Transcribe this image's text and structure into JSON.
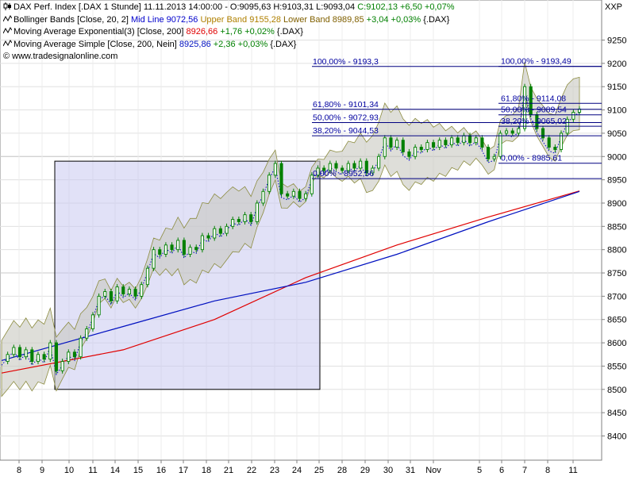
{
  "header": {
    "instrument": "DAX Perf. Index [.DAX  1 Stunde] 11.11.2013 14:00:00 - O:9095,63 H:9103,31 L:9093,04",
    "close_change": "C:9102,13 +6,50 +0,07%",
    "bollinger_prefix": "Bollinger Bands [Close, 20, 2]",
    "bollinger_mid": "Mid Line 9072,56",
    "bollinger_upper": "Upper Band 9155,28",
    "bollinger_lower": "Lower Band 8989,85",
    "bollinger_change": "+3,04 +0,03%",
    "bollinger_suffix": "{.DAX}",
    "ema_prefix": "Moving Average Exponential(3) [Close, 200]",
    "ema_value": "8926,66",
    "ema_change": "+1,76 +0,02%",
    "ema_suffix": "{.DAX}",
    "sma_prefix": "Moving Average Simple [Close, 200, Nein]",
    "sma_value": "8925,86",
    "sma_change": "+2,36 +0,03%",
    "sma_suffix": "{.DAX}",
    "source": "www.tradesignalonline.com",
    "exchange": "XXP"
  },
  "colors": {
    "candle": "#008000",
    "bollinger_fill": "#c8c8c0",
    "bollinger_mid": "#0000cc",
    "ema": "#e00000",
    "sma": "#0010c0",
    "fib": "#000080",
    "fib_text": "#0000a0",
    "box_fill": "#c8c8f0",
    "box_border": "#000000"
  },
  "chart_data": {
    "type": "line",
    "y_axis": {
      "ylim": [
        8350,
        9300
      ],
      "ticks": [
        8400,
        8450,
        8500,
        8550,
        8600,
        8650,
        8700,
        8750,
        8800,
        8850,
        8900,
        8950,
        9000,
        9050,
        9100,
        9150,
        9200,
        9250
      ]
    },
    "x_axis": {
      "ticks": [
        "8",
        "9",
        "10",
        "11",
        "14",
        "15",
        "16",
        "17",
        "18",
        "21",
        "22",
        "23",
        "24",
        "25",
        "28",
        "29",
        "30",
        "31",
        "Nov",
        "5",
        "6",
        "7",
        "8",
        "11"
      ]
    },
    "grid": true,
    "close_series": [
      [
        0,
        8560
      ],
      [
        2,
        8575
      ],
      [
        4,
        8590
      ],
      [
        6,
        8570
      ],
      [
        8,
        8585
      ],
      [
        10,
        8560
      ],
      [
        12,
        8575
      ],
      [
        14,
        8565
      ],
      [
        16,
        8600
      ],
      [
        18,
        8540
      ],
      [
        20,
        8560
      ],
      [
        22,
        8580
      ],
      [
        24,
        8570
      ],
      [
        26,
        8610
      ],
      [
        28,
        8630
      ],
      [
        30,
        8660
      ],
      [
        32,
        8700
      ],
      [
        34,
        8710
      ],
      [
        36,
        8690
      ],
      [
        38,
        8720
      ],
      [
        40,
        8705
      ],
      [
        42,
        8715
      ],
      [
        44,
        8700
      ],
      [
        46,
        8725
      ],
      [
        48,
        8760
      ],
      [
        50,
        8800
      ],
      [
        52,
        8790
      ],
      [
        54,
        8810
      ],
      [
        56,
        8800
      ],
      [
        58,
        8820
      ],
      [
        60,
        8790
      ],
      [
        62,
        8805
      ],
      [
        64,
        8800
      ],
      [
        66,
        8830
      ],
      [
        68,
        8825
      ],
      [
        70,
        8845
      ],
      [
        72,
        8835
      ],
      [
        74,
        8850
      ],
      [
        76,
        8865
      ],
      [
        78,
        8860
      ],
      [
        80,
        8875
      ],
      [
        82,
        8860
      ],
      [
        84,
        8900
      ],
      [
        86,
        8925
      ],
      [
        88,
        8960
      ],
      [
        90,
        8985
      ],
      [
        92,
        8920
      ],
      [
        94,
        8915
      ],
      [
        96,
        8925
      ],
      [
        98,
        8910
      ],
      [
        100,
        8920
      ],
      [
        102,
        8960
      ],
      [
        104,
        8975
      ],
      [
        106,
        8970
      ],
      [
        108,
        8985
      ],
      [
        110,
        8975
      ],
      [
        112,
        8970
      ],
      [
        114,
        8985
      ],
      [
        116,
        8975
      ],
      [
        118,
        8990
      ],
      [
        120,
        8965
      ],
      [
        122,
        8975
      ],
      [
        124,
        9000
      ],
      [
        126,
        9040
      ],
      [
        128,
        9020
      ],
      [
        130,
        9035
      ],
      [
        132,
        9010
      ],
      [
        134,
        9000
      ],
      [
        136,
        9020
      ],
      [
        138,
        9015
      ],
      [
        140,
        9030
      ],
      [
        142,
        9020
      ],
      [
        144,
        9035
      ],
      [
        146,
        9025
      ],
      [
        148,
        9040
      ],
      [
        150,
        9030
      ],
      [
        152,
        9045
      ],
      [
        154,
        9030
      ],
      [
        156,
        9040
      ],
      [
        158,
        9020
      ],
      [
        160,
        8995
      ],
      [
        162,
        9000
      ],
      [
        164,
        9050
      ],
      [
        166,
        9055
      ],
      [
        168,
        9050
      ],
      [
        170,
        9060
      ],
      [
        172,
        9150
      ],
      [
        174,
        9090
      ],
      [
        176,
        9060
      ],
      [
        178,
        9040
      ],
      [
        180,
        9020
      ],
      [
        182,
        9015
      ],
      [
        184,
        9050
      ],
      [
        186,
        9080
      ],
      [
        188,
        9095
      ],
      [
        190,
        9102
      ]
    ],
    "ema_200": [
      [
        0,
        8535
      ],
      [
        40,
        8585
      ],
      [
        70,
        8650
      ],
      [
        100,
        8740
      ],
      [
        130,
        8810
      ],
      [
        160,
        8870
      ],
      [
        190,
        8926
      ]
    ],
    "sma_200": [
      [
        0,
        8562
      ],
      [
        40,
        8635
      ],
      [
        70,
        8690
      ],
      [
        100,
        8730
      ],
      [
        130,
        8790
      ],
      [
        160,
        8860
      ],
      [
        190,
        8925
      ]
    ],
    "bollinger_band": {
      "mid": 9072.56,
      "upper": 9155.28,
      "lower": 8989.85
    },
    "fib_left": [
      {
        "label": "100,00% - 9193,3",
        "value": 9193.3
      },
      {
        "label": "61,80% - 9101,34",
        "value": 9101.34
      },
      {
        "label": "50,00% - 9072,93",
        "value": 9072.93
      },
      {
        "label": "38,20% - 9044,53",
        "value": 9044.53
      },
      {
        "label": "0,00% - 8952,56",
        "value": 8952.56
      }
    ],
    "fib_right": [
      {
        "label": "100,00% - 9193,49",
        "value": 9193.49
      },
      {
        "label": "61,80% - 9114,08",
        "value": 9114.08
      },
      {
        "label": "50,00% - 9089,54",
        "value": 9089.54
      },
      {
        "label": "38,20% - 9065,02",
        "value": 9065.02
      },
      {
        "label": "0,00% - 8985,61",
        "value": 8985.61
      }
    ]
  }
}
